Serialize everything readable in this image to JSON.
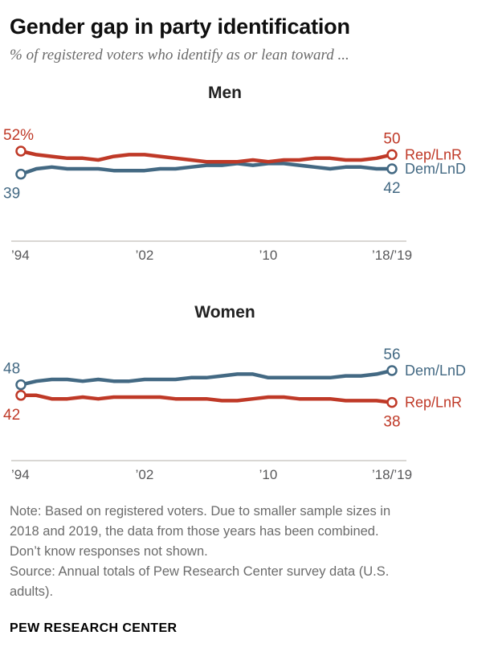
{
  "page": {
    "title": "Gender gap in party identification",
    "subtitle": "% of registered voters who identify as or lean toward ...",
    "note_lines": [
      "Note: Based on registered voters. Due to smaller sample sizes in",
      "2018 and 2019, the data from those years has been combined.",
      "Don’t know responses not shown.",
      "Source: Annual totals of Pew Research Center survey data (U.S.",
      "adults)."
    ],
    "footer": "PEW RESEARCH CENTER"
  },
  "colors": {
    "rep": "#bf3927",
    "dem": "#436983",
    "axis": "#b3afa9",
    "tick_text": "#58585a"
  },
  "chart_data": [
    {
      "type": "line",
      "title": "Men",
      "xlabel": "",
      "ylabel": "% of registered voters",
      "x_categories": [
        "1994",
        "1995",
        "1996",
        "1997",
        "1998",
        "1999",
        "2000",
        "2001",
        "2002",
        "2003",
        "2004",
        "2005",
        "2006",
        "2007",
        "2008",
        "2009",
        "2010",
        "2011",
        "2012",
        "2013",
        "2014",
        "2015",
        "2016",
        "2017",
        "2018/19"
      ],
      "x_ticks": [
        {
          "label": "’94",
          "pos": 0
        },
        {
          "label": "’02",
          "pos": 0.3333
        },
        {
          "label": "’10",
          "pos": 0.6667
        },
        {
          "label": "’18/’19",
          "pos": 1
        }
      ],
      "series": [
        {
          "name": "Rep/LnR",
          "color_key": "rep",
          "label_side": "above",
          "start_label": "52%",
          "end_label": "50",
          "values": [
            52,
            50,
            49,
            48,
            48,
            47,
            49,
            50,
            50,
            49,
            48,
            47,
            46,
            46,
            46,
            47,
            46,
            47,
            47,
            48,
            48,
            47,
            47,
            48,
            50
          ]
        },
        {
          "name": "Dem/LnD",
          "color_key": "dem",
          "label_side": "below",
          "start_label": "39",
          "end_label": "42",
          "values": [
            39,
            42,
            43,
            42,
            42,
            42,
            41,
            41,
            41,
            42,
            42,
            43,
            44,
            44,
            45,
            44,
            45,
            45,
            44,
            43,
            42,
            43,
            43,
            42,
            42
          ]
        }
      ]
    },
    {
      "type": "line",
      "title": "Women",
      "xlabel": "",
      "ylabel": "% of registered voters",
      "x_categories": [
        "1994",
        "1995",
        "1996",
        "1997",
        "1998",
        "1999",
        "2000",
        "2001",
        "2002",
        "2003",
        "2004",
        "2005",
        "2006",
        "2007",
        "2008",
        "2009",
        "2010",
        "2011",
        "2012",
        "2013",
        "2014",
        "2015",
        "2016",
        "2017",
        "2018/19"
      ],
      "x_ticks": [
        {
          "label": "’94",
          "pos": 0
        },
        {
          "label": "’02",
          "pos": 0.3333
        },
        {
          "label": "’10",
          "pos": 0.6667
        },
        {
          "label": "’18/’19",
          "pos": 1
        }
      ],
      "series": [
        {
          "name": "Dem/LnD",
          "color_key": "dem",
          "label_side": "above",
          "start_label": "48",
          "end_label": "56",
          "values": [
            48,
            50,
            51,
            51,
            50,
            51,
            50,
            50,
            51,
            51,
            51,
            52,
            52,
            53,
            54,
            54,
            52,
            52,
            52,
            52,
            52,
            53,
            53,
            54,
            56
          ]
        },
        {
          "name": "Rep/LnR",
          "color_key": "rep",
          "label_side": "below",
          "start_label": "42",
          "end_label": "38",
          "values": [
            42,
            42,
            40,
            40,
            41,
            40,
            41,
            41,
            41,
            41,
            40,
            40,
            40,
            39,
            39,
            40,
            41,
            41,
            40,
            40,
            40,
            39,
            39,
            39,
            38
          ]
        }
      ]
    }
  ]
}
